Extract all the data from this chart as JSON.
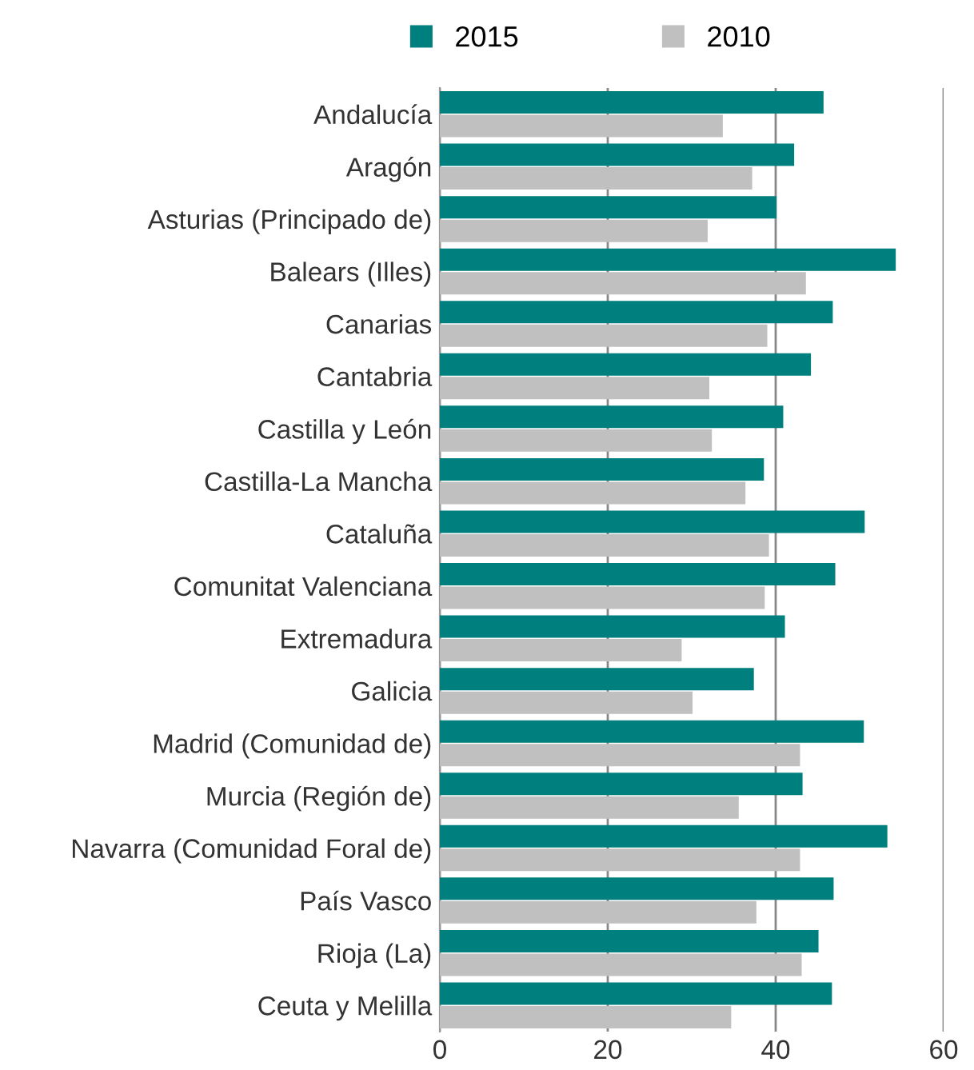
{
  "chart_data": {
    "type": "bar",
    "orientation": "horizontal",
    "categories": [
      "Andalucía",
      "Aragón",
      "Asturias (Principado de)",
      "Balears (Illes)",
      "Canarias",
      "Cantabria",
      "Castilla y León",
      "Castilla-La Mancha",
      "Cataluña",
      "Comunitat Valenciana",
      "Extremadura",
      "Galicia",
      "Madrid (Comunidad de)",
      "Murcia (Región de)",
      "Navarra (Comunidad Foral de)",
      "País Vasco",
      "Rioja (La)",
      "Ceuta y Melilla"
    ],
    "series": [
      {
        "name": "2015",
        "color": "#007f7f",
        "values": [
          45.7,
          42.2,
          40.1,
          54.3,
          46.8,
          44.2,
          40.9,
          38.6,
          50.6,
          47.1,
          41.1,
          37.4,
          50.5,
          43.2,
          53.3,
          46.9,
          45.1,
          46.7
        ]
      },
      {
        "name": "2010",
        "color": "#c0c0c0",
        "values": [
          33.7,
          37.2,
          31.9,
          43.6,
          39.0,
          32.1,
          32.4,
          36.4,
          39.2,
          38.7,
          28.8,
          30.1,
          42.9,
          35.6,
          42.9,
          37.7,
          43.1,
          34.7
        ]
      }
    ],
    "xlim": [
      0,
      60
    ],
    "xticks": [
      0,
      20,
      40,
      60
    ],
    "grid": "x",
    "legend": "top"
  }
}
